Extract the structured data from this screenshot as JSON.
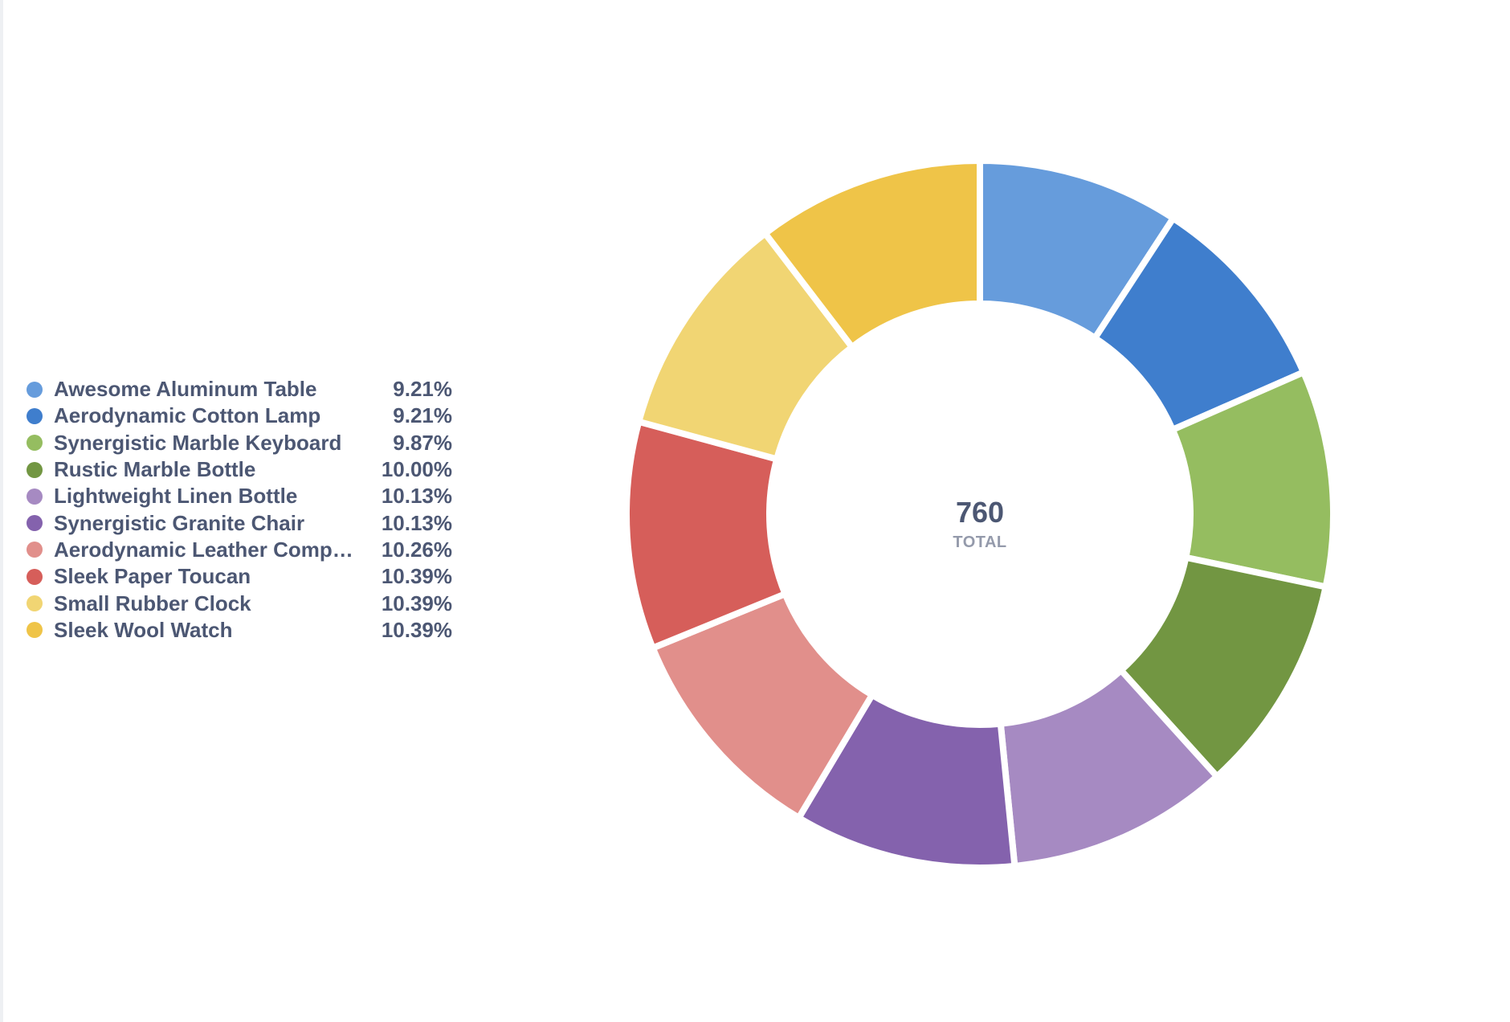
{
  "chart_data": {
    "type": "pie",
    "donut": true,
    "total_value": "760",
    "total_label": "TOTAL",
    "legend_position": "left",
    "slices": [
      {
        "label": "Awesome Aluminum Table",
        "percent_label": "9.21%",
        "value": 9.21,
        "color": "#669cdc"
      },
      {
        "label": "Aerodynamic Cotton Lamp",
        "percent_label": "9.21%",
        "value": 9.21,
        "color": "#3f7ecd"
      },
      {
        "label": "Synergistic Marble Keyboard",
        "percent_label": "9.87%",
        "value": 9.87,
        "color": "#95bd60"
      },
      {
        "label": "Rustic Marble Bottle",
        "percent_label": "10.00%",
        "value": 10.0,
        "color": "#729642"
      },
      {
        "label": "Lightweight Linen Bottle",
        "percent_label": "10.13%",
        "value": 10.13,
        "color": "#a68ac2"
      },
      {
        "label": "Synergistic Granite Chair",
        "percent_label": "10.13%",
        "value": 10.13,
        "color": "#8462ad"
      },
      {
        "label": "Aerodynamic Leather Comput…",
        "percent_label": "10.26%",
        "value": 10.26,
        "color": "#e18f8b"
      },
      {
        "label": "Sleek Paper Toucan",
        "percent_label": "10.39%",
        "value": 10.39,
        "color": "#d65e5a"
      },
      {
        "label": "Small Rubber Clock",
        "percent_label": "10.39%",
        "value": 10.39,
        "color": "#f1d573"
      },
      {
        "label": "Sleek Wool Watch",
        "percent_label": "10.39%",
        "value": 10.39,
        "color": "#efc448"
      }
    ]
  }
}
